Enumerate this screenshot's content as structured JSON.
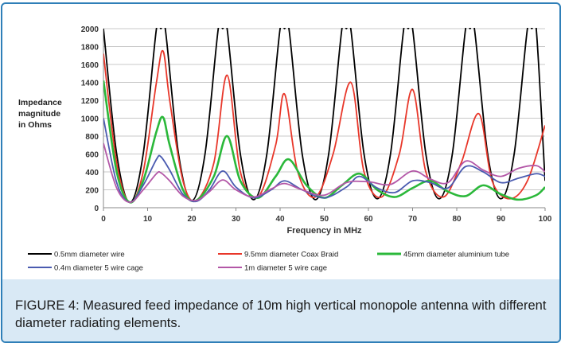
{
  "caption": "FIGURE 4: Measured feed impedance of 10m high vertical monopole antenna with different diameter radiating elements.",
  "chart_data": {
    "type": "line",
    "title": "",
    "xlabel": "Frequency in MHz",
    "ylabel_lines": [
      "Impedance",
      "magnitude",
      "in  Ohms"
    ],
    "xlim": [
      0,
      100
    ],
    "ylim": [
      0,
      2000
    ],
    "x_ticks": [
      0,
      10,
      20,
      30,
      40,
      50,
      60,
      70,
      80,
      90,
      100
    ],
    "y_ticks": [
      0,
      200,
      400,
      600,
      800,
      1000,
      1200,
      1400,
      1600,
      1800,
      2000
    ],
    "grid": "horizontal",
    "legend_position": "bottom",
    "series": [
      {
        "name": "0.5mm diameter wire",
        "color": "#000000",
        "x": [
          0,
          3,
          6,
          9,
          12,
          13,
          14,
          17,
          20,
          23,
          26,
          27,
          28,
          31,
          34,
          37,
          40,
          41,
          42,
          45,
          48,
          51,
          54,
          55,
          56,
          59,
          62,
          65,
          68,
          69,
          70,
          73,
          76,
          79,
          82,
          83,
          84,
          87,
          90,
          93,
          96,
          97,
          98,
          100
        ],
        "y": [
          2000,
          600,
          60,
          600,
          2000,
          2000,
          2000,
          600,
          80,
          600,
          2000,
          2000,
          2000,
          600,
          90,
          600,
          2000,
          2000,
          2000,
          600,
          90,
          600,
          2000,
          2000,
          2000,
          600,
          100,
          600,
          2000,
          2000,
          2000,
          600,
          100,
          600,
          2000,
          2000,
          2000,
          600,
          100,
          600,
          2000,
          2000,
          2000,
          300
        ]
      },
      {
        "name": "9.5mm diameter Coax Braid",
        "color": "#e8372a",
        "x": [
          0,
          3,
          6,
          9,
          12,
          13.5,
          15,
          18,
          21,
          25,
          28,
          31,
          35,
          39,
          41,
          44,
          48,
          52,
          56,
          59,
          63,
          67,
          70,
          73,
          77,
          81,
          85,
          88,
          92,
          96,
          100
        ],
        "y": [
          1720,
          500,
          60,
          400,
          1400,
          1750,
          1200,
          300,
          80,
          500,
          1480,
          400,
          120,
          700,
          1270,
          400,
          120,
          600,
          1400,
          400,
          120,
          600,
          1320,
          400,
          120,
          500,
          1050,
          300,
          100,
          300,
          920
        ]
      },
      {
        "name": "45mm diameter aluminium tube",
        "color": "#2bb83a",
        "x": [
          0,
          3,
          6,
          9,
          12,
          13.5,
          15,
          18,
          21,
          25,
          28,
          31,
          35,
          39,
          42,
          46,
          50,
          54,
          58,
          62,
          66,
          70,
          74,
          78,
          82,
          86,
          90,
          94,
          98,
          100
        ],
        "y": [
          1420,
          400,
          60,
          300,
          850,
          1010,
          700,
          200,
          80,
          350,
          800,
          300,
          110,
          350,
          540,
          250,
          110,
          250,
          380,
          200,
          120,
          220,
          300,
          180,
          130,
          250,
          150,
          90,
          140,
          230
        ]
      },
      {
        "name": "0.4m diameter 5 wire cage",
        "color": "#4a5bb0",
        "x": [
          0,
          3,
          6,
          9,
          12,
          13,
          15,
          18,
          21,
          24,
          27,
          30,
          34,
          38,
          41,
          45,
          50,
          55,
          58,
          62,
          66,
          70,
          74,
          78,
          82,
          86,
          90,
          94,
          98,
          100
        ],
        "y": [
          1000,
          280,
          60,
          250,
          540,
          570,
          420,
          150,
          70,
          200,
          410,
          230,
          110,
          200,
          300,
          200,
          110,
          230,
          350,
          220,
          170,
          300,
          280,
          220,
          460,
          400,
          280,
          330,
          380,
          350
        ]
      },
      {
        "name": "1m diameter 5 wire cage",
        "color": "#b357a7",
        "x": [
          0,
          3,
          6,
          9,
          12,
          13,
          15,
          18,
          21,
          24,
          27,
          30,
          34,
          38,
          41,
          45,
          50,
          55,
          60,
          65,
          70,
          74,
          78,
          82,
          86,
          90,
          94,
          98,
          100
        ],
        "y": [
          720,
          220,
          60,
          200,
          380,
          390,
          300,
          130,
          80,
          180,
          310,
          200,
          120,
          210,
          270,
          200,
          140,
          280,
          290,
          260,
          410,
          320,
          280,
          520,
          420,
          350,
          440,
          470,
          400
        ]
      }
    ]
  }
}
